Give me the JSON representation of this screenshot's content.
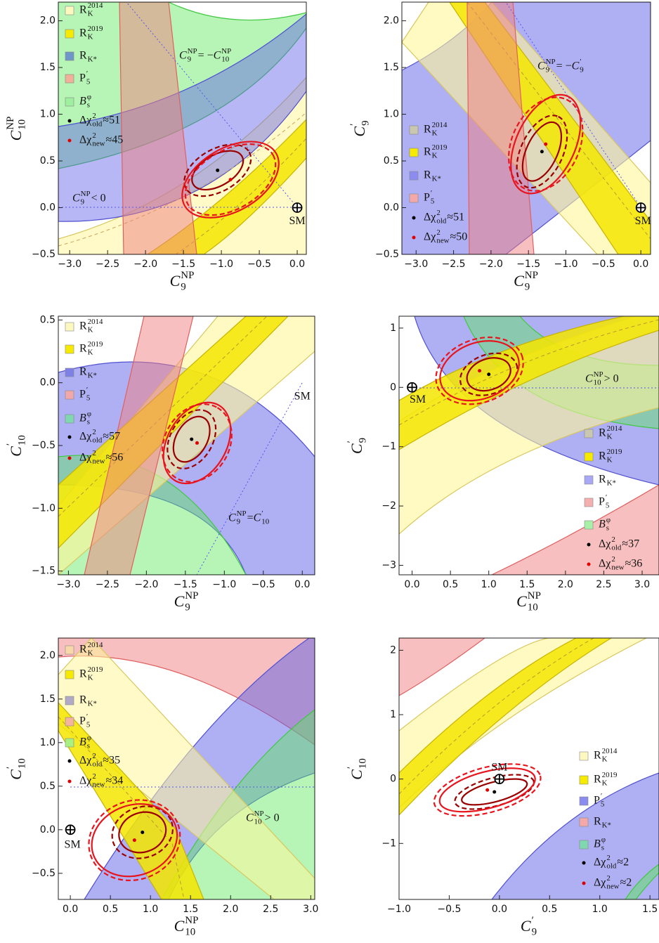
{
  "chart_data": [
    {
      "type": "contour",
      "x_label": [
        {
          "text": "C",
          "sub": "9",
          "sup": "NP"
        }
      ],
      "y_label": [
        {
          "text": "C",
          "sub": "10",
          "sup": "NP"
        }
      ],
      "xlim": [
        -3.15,
        0.12
      ],
      "ylim": [
        -0.5,
        2.2
      ],
      "xticks": [
        {
          "value": -3,
          "label": "−3.0"
        },
        {
          "value": -2.5,
          "label": "−2.5"
        },
        {
          "value": -2,
          "label": "−2.0"
        },
        {
          "value": -1.5,
          "label": "−1.5"
        },
        {
          "value": -1,
          "label": "−1.0"
        },
        {
          "value": -0.5,
          "label": "−0.5"
        },
        {
          "value": 0,
          "label": "0.0"
        }
      ],
      "yticks": [
        {
          "value": -0.5,
          "label": "−0.5"
        },
        {
          "value": 0,
          "label": "0.0"
        },
        {
          "value": 0.5,
          "label": "0.5"
        },
        {
          "value": 1,
          "label": "1.0"
        },
        {
          "value": 1.5,
          "label": "1.5"
        },
        {
          "value": 2,
          "label": "2.0"
        }
      ],
      "legend": [
        {
          "label": [
            {
              "text": "R",
              "sub": "K",
              "sup": "2014"
            }
          ],
          "color": "#fdf8c0"
        },
        {
          "label": [
            {
              "text": "R",
              "sub": "K",
              "sup": "2019"
            }
          ],
          "color": "#f5ea00"
        },
        {
          "label": [
            {
              "text": "R",
              "sub": "K*"
            }
          ],
          "color": "#6f96c8"
        },
        {
          "label": [
            {
              "text": "P",
              "sub": "5",
              "sup": "′"
            }
          ],
          "color": "#f0b09a"
        },
        {
          "label": [
            {
              "text": "B",
              "sub": "s",
              "sup": "φ"
            }
          ],
          "color": "#9ef09e"
        }
      ],
      "fits": [
        {
          "label": [
            {
              "text": "Δχ",
              "sub": "old",
              "sup": "2"
            },
            {
              "text": " ≈ "
            }
          ],
          "value": 51,
          "x": -1.05,
          "y": 0.4,
          "color": "#000000"
        },
        {
          "label": [
            {
              "text": "Δχ",
              "sub": "new",
              "sup": "2"
            },
            {
              "text": " ≈ "
            }
          ],
          "value": 45,
          "x": -0.88,
          "y": 0.3,
          "color": "#e00000"
        }
      ],
      "annotations": [
        [
          {
            "text": "C",
            "sub": "9",
            "sup": "NP"
          },
          {
            "text": " = −"
          },
          {
            "text": "C",
            "sub": "10",
            "sup": "NP"
          }
        ],
        [
          {
            "text": "C",
            "sub": "9",
            "sup": "NP"
          },
          {
            "text": " < 0"
          }
        ]
      ],
      "sm": {
        "label": "SM",
        "x": 0,
        "y": 0,
        "marker": true
      }
    },
    {
      "type": "contour",
      "x_label": [
        {
          "text": "C",
          "sub": "9",
          "sup": "NP"
        }
      ],
      "y_label": [
        {
          "text": "C",
          "sub": "9",
          "sup": "′"
        }
      ],
      "xlim": [
        -3.19,
        0.13
      ],
      "ylim": [
        -0.5,
        2.2
      ],
      "xticks": [
        {
          "value": -3,
          "label": "−3.0"
        },
        {
          "value": -2.5,
          "label": "−2.5"
        },
        {
          "value": -2,
          "label": "−2.0"
        },
        {
          "value": -1.5,
          "label": "−1.5"
        },
        {
          "value": -1,
          "label": "−1.0"
        },
        {
          "value": -0.5,
          "label": "−0.5"
        },
        {
          "value": 0,
          "label": "0.0"
        }
      ],
      "yticks": [
        {
          "value": -0.5,
          "label": "−0.5"
        },
        {
          "value": 0,
          "label": "0.0"
        },
        {
          "value": 0.5,
          "label": "0.5"
        },
        {
          "value": 1,
          "label": "1.0"
        },
        {
          "value": 1.5,
          "label": "1.5"
        },
        {
          "value": 2,
          "label": "2.0"
        }
      ],
      "legend": [
        {
          "label": [
            {
              "text": "R",
              "sub": "K",
              "sup": "2014"
            }
          ],
          "color": "#c9c7b0"
        },
        {
          "label": [
            {
              "text": "R",
              "sub": "K",
              "sup": "2019"
            }
          ],
          "color": "#f5ea00"
        },
        {
          "label": [
            {
              "text": "R",
              "sub": "K*"
            }
          ],
          "color": "#8c8cf0"
        },
        {
          "label": [
            {
              "text": "P",
              "sub": "5",
              "sup": "′"
            }
          ],
          "color": "#f4a8a8"
        }
      ],
      "fits": [
        {
          "label": [
            {
              "text": "Δχ",
              "sub": "old",
              "sup": "2"
            },
            {
              "text": " ≈ "
            }
          ],
          "value": 51,
          "x": -1.32,
          "y": 0.6,
          "color": "#000000"
        },
        {
          "label": [
            {
              "text": "Δχ",
              "sub": "new",
              "sup": "2"
            },
            {
              "text": " ≈ "
            }
          ],
          "value": 50,
          "x": -1.27,
          "y": 0.68,
          "color": "#e00000"
        }
      ],
      "annotations": [
        [
          {
            "text": "C",
            "sub": "9",
            "sup": "NP"
          },
          {
            "text": " = −"
          },
          {
            "text": "C",
            "sub": "9",
            "sup": "′"
          }
        ]
      ],
      "sm": {
        "label": "SM",
        "x": 0,
        "y": 0,
        "marker": true
      }
    },
    {
      "type": "contour",
      "x_label": [
        {
          "text": "C",
          "sub": "9",
          "sup": "NP"
        }
      ],
      "y_label": [
        {
          "text": "C",
          "sub": "10",
          "sup": "′"
        }
      ],
      "xlim": [
        -3.13,
        0.16
      ],
      "ylim": [
        -1.53,
        0.53
      ],
      "xticks": [
        {
          "value": -3,
          "label": "−3.0"
        },
        {
          "value": -2.5,
          "label": "−2.5"
        },
        {
          "value": -2,
          "label": "−2.0"
        },
        {
          "value": -1.5,
          "label": "−1.5"
        },
        {
          "value": -1,
          "label": "−1.0"
        },
        {
          "value": -0.5,
          "label": "−0.5"
        },
        {
          "value": 0,
          "label": "0.0"
        }
      ],
      "yticks": [
        {
          "value": -1.5,
          "label": "−1.5"
        },
        {
          "value": -1,
          "label": "−1.0"
        },
        {
          "value": -0.5,
          "label": "−0.5"
        },
        {
          "value": 0,
          "label": "0.0"
        },
        {
          "value": 0.5,
          "label": "0.5"
        }
      ],
      "legend": [
        {
          "label": [
            {
              "text": "R",
              "sub": "K",
              "sup": "2014"
            }
          ],
          "color": "#fdf8c0"
        },
        {
          "label": [
            {
              "text": "R",
              "sub": "K",
              "sup": "2019"
            }
          ],
          "color": "#f5ea00"
        },
        {
          "label": [
            {
              "text": "R",
              "sub": "K*"
            }
          ],
          "color": "#7f7fe8"
        },
        {
          "label": [
            {
              "text": "P",
              "sub": "5",
              "sup": "′"
            }
          ],
          "color": "#f0a8a8"
        },
        {
          "label": [
            {
              "text": "B",
              "sub": "s",
              "sup": "φ"
            }
          ],
          "color": "#7fd8b0"
        }
      ],
      "fits": [
        {
          "label": [
            {
              "text": "Δχ",
              "sub": "old",
              "sup": "2"
            },
            {
              "text": " ≈ "
            }
          ],
          "value": 57,
          "x": -1.42,
          "y": -0.45,
          "color": "#000000"
        },
        {
          "label": [
            {
              "text": "Δχ",
              "sub": "new",
              "sup": "2"
            },
            {
              "text": " ≈ "
            }
          ],
          "value": 56,
          "x": -1.35,
          "y": -0.48,
          "color": "#e00000"
        }
      ],
      "annotations": [
        [
          {
            "text": "C",
            "sub": "9",
            "sup": "NP"
          },
          {
            "text": " = "
          },
          {
            "text": "C",
            "sub": "10",
            "sup": "′"
          }
        ]
      ],
      "sm": {
        "label": "SM",
        "x": 0,
        "y": 0,
        "marker": false
      }
    },
    {
      "type": "contour",
      "x_label": [
        {
          "text": "C",
          "sub": "10",
          "sup": "NP"
        }
      ],
      "y_label": [
        {
          "text": "C",
          "sub": "9",
          "sup": "′"
        }
      ],
      "xlim": [
        -0.17,
        3.22
      ],
      "ylim": [
        -3.16,
        1.2
      ],
      "xticks": [
        {
          "value": 0,
          "label": "0.0"
        },
        {
          "value": 0.5,
          "label": "0.5"
        },
        {
          "value": 1,
          "label": "1.0"
        },
        {
          "value": 1.5,
          "label": "1.5"
        },
        {
          "value": 2,
          "label": "2.0"
        },
        {
          "value": 2.5,
          "label": "2.5"
        },
        {
          "value": 3,
          "label": "3.0"
        }
      ],
      "yticks": [
        {
          "value": -3,
          "label": "−3"
        },
        {
          "value": -2,
          "label": "−2"
        },
        {
          "value": -1,
          "label": "−1"
        },
        0,
        1
      ],
      "legend": [
        {
          "label": [
            {
              "text": "R",
              "sub": "K",
              "sup": "2014"
            }
          ],
          "color": "#c9c7b0"
        },
        {
          "label": [
            {
              "text": "R",
              "sub": "K",
              "sup": "2019"
            }
          ],
          "color": "#f5ea00"
        },
        {
          "label": [
            {
              "text": "R",
              "sub": "K*"
            }
          ],
          "color": "#a8a8f4"
        },
        {
          "label": [
            {
              "text": "P",
              "sub": "5",
              "sup": "′"
            }
          ],
          "color": "#f4b0b0"
        },
        {
          "label": [
            {
              "text": "B",
              "sub": "s",
              "sup": "φ"
            }
          ],
          "color": "#a8f0a8"
        }
      ],
      "fits": [
        {
          "label": [
            {
              "text": "Δχ",
              "sub": "old",
              "sup": "2"
            },
            {
              "text": " ≈ "
            }
          ],
          "value": 37,
          "x": 1.0,
          "y": 0.22,
          "color": "#000000"
        },
        {
          "label": [
            {
              "text": "Δχ",
              "sub": "new",
              "sup": "2"
            },
            {
              "text": " ≈ "
            }
          ],
          "value": 36,
          "x": 0.88,
          "y": 0.28,
          "color": "#e00000"
        }
      ],
      "annotations": [
        [
          {
            "text": "C",
            "sub": "10",
            "sup": "NP"
          },
          {
            "text": " > 0"
          }
        ]
      ],
      "sm": {
        "label": "SM",
        "x": 0,
        "y": 0,
        "marker": true
      }
    },
    {
      "type": "contour",
      "x_label": [
        {
          "text": "C",
          "sub": "10",
          "sup": "NP"
        }
      ],
      "y_label": [
        {
          "text": "C",
          "sub": "10",
          "sup": "′"
        }
      ],
      "xlim": [
        -0.15,
        3.05
      ],
      "ylim": [
        -0.8,
        2.2
      ],
      "xticks": [
        {
          "value": 0,
          "label": "0.0"
        },
        {
          "value": 0.5,
          "label": "0.5"
        },
        {
          "value": 1,
          "label": "1.0"
        },
        {
          "value": 1.5,
          "label": "1.5"
        },
        {
          "value": 2,
          "label": "2.0"
        },
        {
          "value": 2.5,
          "label": "2.5"
        },
        {
          "value": 3,
          "label": "3.0"
        }
      ],
      "yticks": [
        {
          "value": -0.5,
          "label": "−0.5"
        },
        {
          "value": 0,
          "label": "0.0"
        },
        {
          "value": 0.5,
          "label": "0.5"
        },
        {
          "value": 1,
          "label": "1.0"
        },
        {
          "value": 1.5,
          "label": "1.5"
        },
        {
          "value": 2,
          "label": "2.0"
        }
      ],
      "legend": [
        {
          "label": [
            {
              "text": "R",
              "sub": "K",
              "sup": "2014"
            }
          ],
          "color": "#f8d8a8"
        },
        {
          "label": [
            {
              "text": "R",
              "sub": "K",
              "sup": "2019"
            }
          ],
          "color": "#f5ea00"
        },
        {
          "label": [
            {
              "text": "R",
              "sub": "K*"
            }
          ],
          "color": "#b0aac8"
        },
        {
          "label": [
            {
              "text": "P",
              "sub": "5",
              "sup": "′"
            }
          ],
          "color": "#f4b4a0"
        },
        {
          "label": [
            {
              "text": "B",
              "sub": "s",
              "sup": "φ"
            }
          ],
          "color": "#a8f080"
        }
      ],
      "fits": [
        {
          "label": [
            {
              "text": "Δχ",
              "sub": "old",
              "sup": "2"
            },
            {
              "text": " ≈ "
            }
          ],
          "value": 35,
          "x": 0.9,
          "y": -0.03,
          "color": "#000000"
        },
        {
          "label": [
            {
              "text": "Δχ",
              "sub": "new",
              "sup": "2"
            },
            {
              "text": " ≈ "
            }
          ],
          "value": 34,
          "x": 0.8,
          "y": -0.12,
          "color": "#e00000"
        }
      ],
      "annotations": [
        [
          {
            "text": "C",
            "sub": "10",
            "sup": "NP"
          },
          {
            "text": " > 0"
          }
        ]
      ],
      "sm": {
        "label": "SM",
        "x": 0,
        "y": 0,
        "marker": true
      }
    },
    {
      "type": "contour",
      "x_label": [
        {
          "text": "C",
          "sub": "9",
          "sup": "′"
        }
      ],
      "y_label": [
        {
          "text": "C",
          "sub": "10",
          "sup": "′"
        }
      ],
      "xlim": [
        -1.0,
        1.59
      ],
      "ylim": [
        -1.87,
        2.19
      ],
      "xticks": [
        {
          "value": -1,
          "label": "−1.0"
        },
        {
          "value": -0.5,
          "label": "−0.5"
        },
        {
          "value": 0,
          "label": "0.0"
        },
        {
          "value": 0.5,
          "label": "0.5"
        },
        {
          "value": 1,
          "label": "1.0"
        },
        {
          "value": 1.5,
          "label": "1.5"
        }
      ],
      "yticks": [
        {
          "value": -1,
          "label": "−1"
        },
        0,
        1,
        2
      ],
      "legend": [
        {
          "label": [
            {
              "text": "R",
              "sub": "K",
              "sup": "2014"
            }
          ],
          "color": "#fdf8c0"
        },
        {
          "label": [
            {
              "text": "R",
              "sub": "K",
              "sup": "2019"
            }
          ],
          "color": "#f5ea00"
        },
        {
          "label": [
            {
              "text": "P",
              "sub": "5",
              "sup": "′"
            }
          ],
          "color": "#8c8cf0"
        },
        {
          "label": [
            {
              "text": "R",
              "sub": "K*"
            }
          ],
          "color": "#f4a8a8"
        },
        {
          "label": [
            {
              "text": "B",
              "sub": "s",
              "sup": "φ"
            }
          ],
          "color": "#7fd8b0"
        }
      ],
      "fits": [
        {
          "label": [
            {
              "text": "Δχ",
              "sub": "old",
              "sup": "2"
            },
            {
              "text": " ≈ "
            }
          ],
          "value": 2,
          "x": -0.05,
          "y": -0.2,
          "color": "#000000"
        },
        {
          "label": [
            {
              "text": "Δχ",
              "sub": "new",
              "sup": "2"
            },
            {
              "text": " ≈ "
            }
          ],
          "value": 2,
          "x": -0.12,
          "y": -0.17,
          "color": "#e00000"
        }
      ],
      "annotations": [],
      "sm": {
        "label": "SM",
        "x": 0,
        "y": 0,
        "marker": true
      }
    }
  ]
}
